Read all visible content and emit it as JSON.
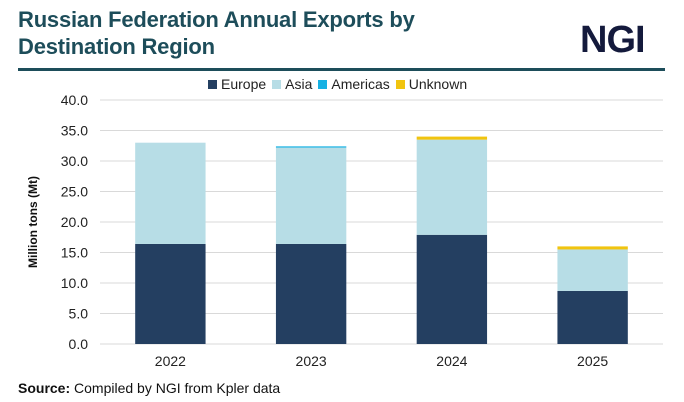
{
  "header": {
    "title_line1": "Russian Federation Annual Exports by",
    "title_line2": "Destination Region",
    "logo": "NGI"
  },
  "footer": {
    "source_label": "Source:",
    "source_text": " Compiled by NGI from Kpler data"
  },
  "chart_data": {
    "type": "bar",
    "stacked": true,
    "title": "Russian Federation Annual Exports by Destination Region",
    "xlabel": "",
    "ylabel": "Million tons (Mt)",
    "ylim": [
      0,
      40
    ],
    "yticks": [
      "0.0",
      "5.0",
      "10.0",
      "15.0",
      "20.0",
      "25.0",
      "30.0",
      "35.0",
      "40.0"
    ],
    "grid": true,
    "legend_position": "top",
    "categories": [
      "2022",
      "2023",
      "2024",
      "2025"
    ],
    "series": [
      {
        "name": "Europe",
        "color": "#243f61",
        "values": [
          16.4,
          16.4,
          17.9,
          8.7
        ]
      },
      {
        "name": "Asia",
        "color": "#b7dde6",
        "values": [
          16.6,
          15.8,
          15.6,
          6.8
        ]
      },
      {
        "name": "Americas",
        "color": "#16b1e3",
        "values": [
          0.0,
          0.2,
          0.0,
          0.0
        ]
      },
      {
        "name": "Unknown",
        "color": "#f1c40f",
        "values": [
          0.0,
          0.0,
          0.5,
          0.5
        ]
      }
    ]
  }
}
